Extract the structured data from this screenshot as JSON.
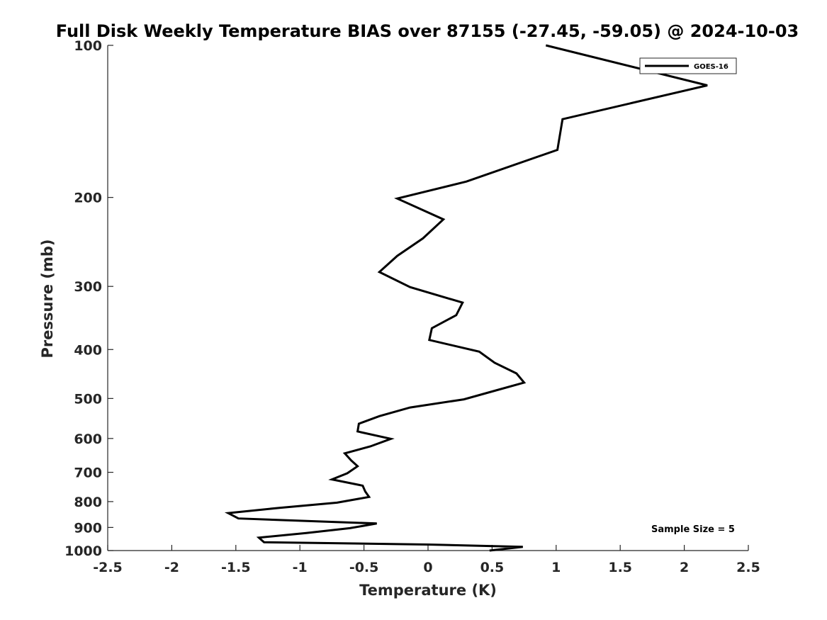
{
  "chart_data": {
    "type": "line",
    "title": "Full Disk Weekly Temperature BIAS over 87155 (-27.45, -59.05) @ 2024-10-03",
    "xlabel": "Temperature (K)",
    "ylabel": "Pressure (mb)",
    "xlim": [
      -2.5,
      2.5
    ],
    "ylim": [
      100,
      1000
    ],
    "y_scale": "log",
    "y_reversed": true,
    "grid": false,
    "legend_position": "top-right",
    "x_ticks": [
      -2.5,
      -2,
      -1.5,
      -1,
      -0.5,
      0,
      0.5,
      1,
      1.5,
      2,
      2.5
    ],
    "x_tick_labels": [
      "-2.5",
      "-2",
      "-1.5",
      "-1",
      "-0.5",
      "0",
      "0.5",
      "1",
      "1.5",
      "2",
      "2.5"
    ],
    "y_ticks": [
      100,
      200,
      300,
      400,
      500,
      600,
      700,
      800,
      900,
      1000
    ],
    "y_tick_labels": [
      "100",
      "200",
      "300",
      "400",
      "500",
      "600",
      "700",
      "800",
      "900",
      "1000"
    ],
    "annotation": "Sample Size = 5",
    "series": [
      {
        "name": "GOES-16",
        "color": "#000000",
        "points": [
          {
            "t": 0.92,
            "p": 100
          },
          {
            "t": 2.18,
            "p": 120
          },
          {
            "t": 1.05,
            "p": 140
          },
          {
            "t": 1.01,
            "p": 161
          },
          {
            "t": 0.3,
            "p": 186
          },
          {
            "t": -0.24,
            "p": 201
          },
          {
            "t": 0.12,
            "p": 221
          },
          {
            "t": -0.04,
            "p": 241
          },
          {
            "t": -0.24,
            "p": 261
          },
          {
            "t": -0.38,
            "p": 281
          },
          {
            "t": -0.14,
            "p": 301
          },
          {
            "t": 0.27,
            "p": 323
          },
          {
            "t": 0.22,
            "p": 342
          },
          {
            "t": 0.03,
            "p": 363
          },
          {
            "t": 0.01,
            "p": 383
          },
          {
            "t": 0.4,
            "p": 404
          },
          {
            "t": 0.52,
            "p": 425
          },
          {
            "t": 0.69,
            "p": 446
          },
          {
            "t": 0.75,
            "p": 465
          },
          {
            "t": 0.53,
            "p": 482
          },
          {
            "t": 0.28,
            "p": 502
          },
          {
            "t": -0.14,
            "p": 521
          },
          {
            "t": -0.38,
            "p": 542
          },
          {
            "t": -0.54,
            "p": 561
          },
          {
            "t": -0.55,
            "p": 581
          },
          {
            "t": -0.29,
            "p": 601
          },
          {
            "t": -0.45,
            "p": 622
          },
          {
            "t": -0.65,
            "p": 642
          },
          {
            "t": -0.6,
            "p": 663
          },
          {
            "t": -0.55,
            "p": 681
          },
          {
            "t": -0.63,
            "p": 703
          },
          {
            "t": -0.75,
            "p": 723
          },
          {
            "t": -0.51,
            "p": 744
          },
          {
            "t": -0.49,
            "p": 764
          },
          {
            "t": -0.46,
            "p": 783
          },
          {
            "t": -0.71,
            "p": 804
          },
          {
            "t": -1.16,
            "p": 823
          },
          {
            "t": -1.56,
            "p": 843
          },
          {
            "t": -1.48,
            "p": 864
          },
          {
            "t": -0.4,
            "p": 884
          },
          {
            "t": -0.61,
            "p": 903
          },
          {
            "t": -0.95,
            "p": 923
          },
          {
            "t": -1.32,
            "p": 943
          },
          {
            "t": -1.28,
            "p": 963
          },
          {
            "t": 0.0,
            "p": 973
          },
          {
            "t": 0.74,
            "p": 983
          },
          {
            "t": 0.48,
            "p": 1000
          }
        ]
      }
    ]
  }
}
